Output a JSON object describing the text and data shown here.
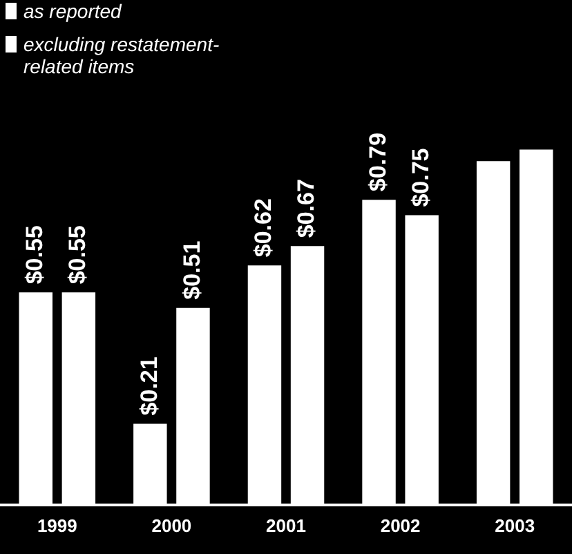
{
  "chart_data": {
    "type": "bar",
    "categories": [
      "1999",
      "2000",
      "2001",
      "2002",
      "2003"
    ],
    "series": [
      {
        "name": "as reported",
        "color": "#ffffff",
        "values": [
          0.55,
          0.21,
          0.62,
          0.79,
          0.89
        ],
        "value_labels": [
          "$0.55",
          "$0.21",
          "$0.62",
          "$0.79",
          null
        ]
      },
      {
        "name": "excluding restatement-related items",
        "color": "#ffffff",
        "values": [
          0.55,
          0.51,
          0.67,
          0.75,
          0.92
        ],
        "value_labels": [
          "$0.55",
          "$0.51",
          "$0.67",
          "$0.75",
          null
        ]
      }
    ],
    "legend": "top left"
  }
}
